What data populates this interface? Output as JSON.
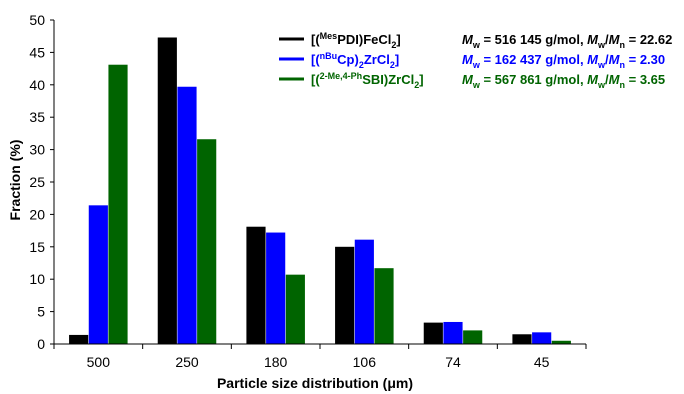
{
  "chart_data": {
    "type": "bar",
    "title": "",
    "xlabel": "Particle size distribution (μm)",
    "ylabel": "Fraction (%)",
    "ylim": [
      0,
      50
    ],
    "yticks": [
      0,
      5,
      10,
      15,
      20,
      25,
      30,
      35,
      40,
      45,
      50
    ],
    "grid": false,
    "legend_position": "top-right",
    "categories": [
      "500",
      "250",
      "180",
      "106",
      "74",
      "45"
    ],
    "series": [
      {
        "name": "[(MesPDI)FeCl2]",
        "legend_parts": [
          {
            "text": "[(",
            "sup": false,
            "sub": false
          },
          {
            "text": "Mes",
            "sup": true,
            "sub": false
          },
          {
            "text": "PDI)FeCl",
            "sup": false,
            "sub": false
          },
          {
            "text": "2",
            "sup": false,
            "sub": true
          },
          {
            "text": "]",
            "sup": false,
            "sub": false
          }
        ],
        "stat_parts": [
          {
            "text": "M",
            "sup": false,
            "sub": false,
            "italic": true
          },
          {
            "text": "w",
            "sup": false,
            "sub": true,
            "italic": false
          },
          {
            "text": " = 516 145 g/mol, ",
            "sup": false,
            "sub": false,
            "italic": false
          },
          {
            "text": "M",
            "sup": false,
            "sub": false,
            "italic": true
          },
          {
            "text": "w",
            "sup": false,
            "sub": true,
            "italic": false
          },
          {
            "text": "/",
            "sup": false,
            "sub": false,
            "italic": false
          },
          {
            "text": "M",
            "sup": false,
            "sub": false,
            "italic": true
          },
          {
            "text": "n",
            "sup": false,
            "sub": true,
            "italic": false
          },
          {
            "text": " = 22.62",
            "sup": false,
            "sub": false,
            "italic": false
          }
        ],
        "color": "#000000",
        "values": [
          1.4,
          47.3,
          18.1,
          15.0,
          3.3,
          1.5
        ]
      },
      {
        "name": "[(nBuCp)2ZrCl2]",
        "legend_parts": [
          {
            "text": "[(",
            "sup": false,
            "sub": false
          },
          {
            "text": "nBu",
            "sup": true,
            "sub": false
          },
          {
            "text": "Cp)",
            "sup": false,
            "sub": false
          },
          {
            "text": "2",
            "sup": false,
            "sub": true
          },
          {
            "text": "ZrCl",
            "sup": false,
            "sub": false
          },
          {
            "text": "2",
            "sup": false,
            "sub": true
          },
          {
            "text": "]",
            "sup": false,
            "sub": false
          }
        ],
        "stat_parts": [
          {
            "text": "M",
            "sup": false,
            "sub": false,
            "italic": true
          },
          {
            "text": "w",
            "sup": false,
            "sub": true,
            "italic": false
          },
          {
            "text": " = 162 437 g/mol, ",
            "sup": false,
            "sub": false,
            "italic": false
          },
          {
            "text": "M",
            "sup": false,
            "sub": false,
            "italic": true
          },
          {
            "text": "w",
            "sup": false,
            "sub": true,
            "italic": false
          },
          {
            "text": "/",
            "sup": false,
            "sub": false,
            "italic": false
          },
          {
            "text": "M",
            "sup": false,
            "sub": false,
            "italic": true
          },
          {
            "text": "n",
            "sup": false,
            "sub": true,
            "italic": false
          },
          {
            "text": " = 2.30",
            "sup": false,
            "sub": false,
            "italic": false
          }
        ],
        "color": "#0000ff",
        "values": [
          21.4,
          39.7,
          17.2,
          16.1,
          3.4,
          1.8
        ]
      },
      {
        "name": "[(2-Me,4-PhSBI)ZrCl2]",
        "legend_parts": [
          {
            "text": "[(",
            "sup": false,
            "sub": false
          },
          {
            "text": "2-Me,4-Ph",
            "sup": true,
            "sub": false
          },
          {
            "text": "SBI)ZrCl",
            "sup": false,
            "sub": false
          },
          {
            "text": "2",
            "sup": false,
            "sub": true
          },
          {
            "text": "]",
            "sup": false,
            "sub": false
          }
        ],
        "stat_parts": [
          {
            "text": "M",
            "sup": false,
            "sub": false,
            "italic": true
          },
          {
            "text": "w",
            "sup": false,
            "sub": true,
            "italic": false
          },
          {
            "text": " = 567 861 g/mol, ",
            "sup": false,
            "sub": false,
            "italic": false
          },
          {
            "text": "M",
            "sup": false,
            "sub": false,
            "italic": true
          },
          {
            "text": "w",
            "sup": false,
            "sub": true,
            "italic": false
          },
          {
            "text": "/",
            "sup": false,
            "sub": false,
            "italic": false
          },
          {
            "text": "M",
            "sup": false,
            "sub": false,
            "italic": true
          },
          {
            "text": "n",
            "sup": false,
            "sub": true,
            "italic": false
          },
          {
            "text": " = 3.65",
            "sup": false,
            "sub": false,
            "italic": false
          }
        ],
        "color": "#006400",
        "values": [
          43.1,
          31.6,
          10.7,
          11.7,
          2.1,
          0.5
        ]
      }
    ]
  }
}
